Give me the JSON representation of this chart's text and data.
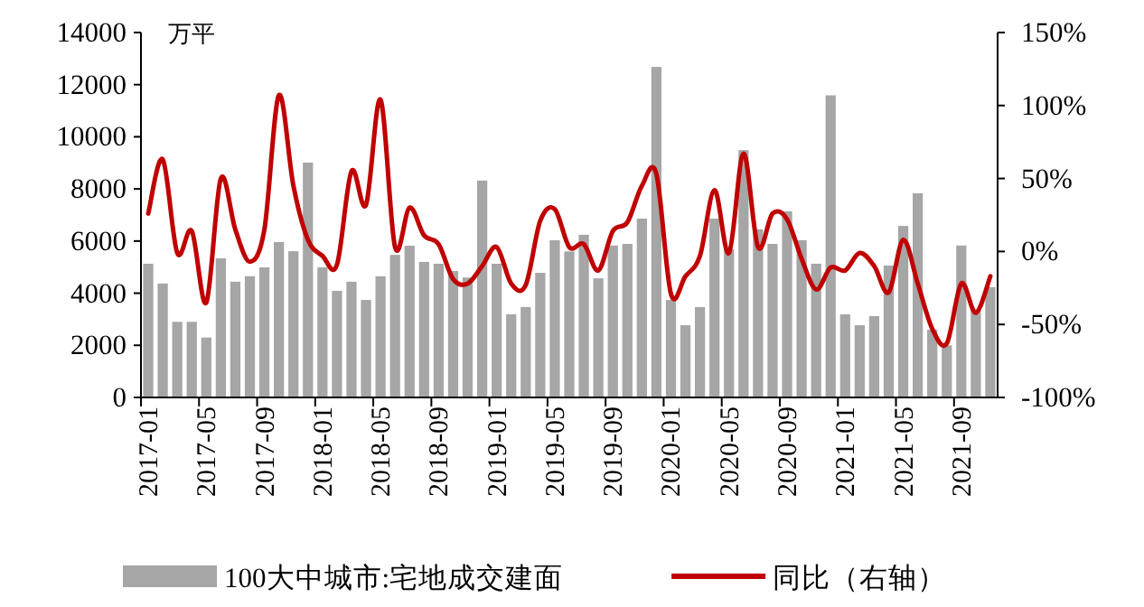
{
  "chart_data": {
    "type": "bar",
    "ylabel": "万平",
    "legend": "bottom",
    "grid": false,
    "categories": [
      "2017-01",
      null,
      null,
      null,
      "2017-05",
      null,
      null,
      null,
      "2017-09",
      null,
      null,
      null,
      "2018-01",
      null,
      null,
      null,
      "2018-05",
      null,
      null,
      null,
      "2018-09",
      null,
      null,
      null,
      "2019-01",
      null,
      null,
      null,
      "2019-05",
      null,
      null,
      null,
      "2019-09",
      null,
      null,
      null,
      "2020-01",
      null,
      null,
      null,
      "2020-05",
      null,
      null,
      null,
      "2020-09",
      null,
      null,
      null,
      "2021-01",
      null,
      null,
      null,
      "2021-05",
      null,
      null,
      null,
      "2021-09",
      null,
      null
    ],
    "series": [
      {
        "name": "100大中城市:宅地成交建面",
        "color": "#a6a6a6",
        "values": [
          5130,
          4370,
          2900,
          2900,
          2300,
          5340,
          4440,
          4650,
          4990,
          5960,
          5610,
          9010,
          4990,
          4090,
          4440,
          3740,
          4650,
          5470,
          5820,
          5200,
          5130,
          4850,
          4600,
          8320,
          5130,
          3190,
          3470,
          4780,
          6030,
          5600,
          6240,
          4570,
          5830,
          5890,
          6860,
          12680,
          3740,
          2770,
          3470,
          6860,
          5680,
          9490,
          6450,
          5890,
          7140,
          6030,
          5130,
          11590,
          3190,
          2770,
          3120,
          5060,
          6580,
          7830,
          2600,
          2000,
          5830,
          3330,
          4230
        ]
      },
      {
        "name": "同比（右轴）",
        "type": "line",
        "axis": "y2",
        "color": "#c00000",
        "values": [
          26,
          63,
          -1,
          14,
          -35,
          50,
          15,
          -7,
          15,
          107,
          45,
          8,
          -3,
          -9,
          55,
          32,
          104,
          3,
          30,
          11,
          5,
          -19,
          -22,
          -10,
          3,
          -22,
          -23,
          21,
          29,
          3,
          5,
          -13,
          14,
          20,
          45,
          53,
          -29,
          -17,
          -3,
          42,
          -1,
          67,
          3,
          26,
          22,
          -5,
          -26,
          -11,
          -13,
          -1,
          -10,
          -28,
          8,
          -22,
          -53,
          -63,
          -22,
          -42,
          -17
        ]
      }
    ],
    "ylim": [
      0,
      14000
    ],
    "yticks": [
      0,
      2000,
      4000,
      6000,
      8000,
      10000,
      12000,
      14000
    ],
    "y2lim": [
      -100,
      150
    ],
    "y2ticks": [
      {
        "value": -100,
        "label": "-100%"
      },
      {
        "value": -50,
        "label": "-50%"
      },
      {
        "value": 0,
        "label": "0%"
      },
      {
        "value": 50,
        "label": "50%"
      },
      {
        "value": 100,
        "label": "100%"
      },
      {
        "value": 150,
        "label": "150%"
      }
    ]
  }
}
